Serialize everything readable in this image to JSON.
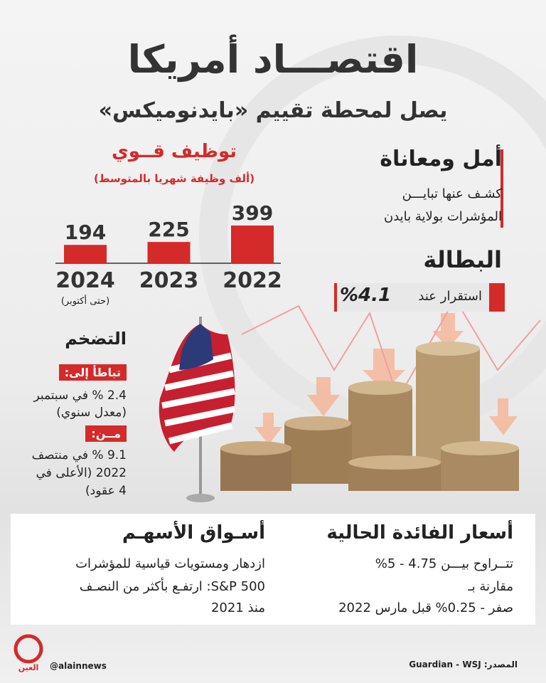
{
  "header": {
    "title": "اقتصـــاد أمريكا",
    "subtitle": "يصل لمحطة تقييم «بايدنوميكس»"
  },
  "chart_data": {
    "type": "bar",
    "title": "توظيف قــوي",
    "subtitle": "(ألف وظيفة شهريا بالمتوسط)",
    "categories": [
      "2022",
      "2023",
      "2024"
    ],
    "values": [
      399,
      225,
      194
    ],
    "color": "#d42a2a",
    "annotation": "(حتى أكتوبر)"
  },
  "hope": {
    "title": "أمل ومعاناة",
    "lines": [
      "كشـف عنها تبايـــن",
      "المؤشرات بولاية بايدن"
    ]
  },
  "unemployment": {
    "title": "البطالة",
    "label": "استقرار عند",
    "value": "%4.1"
  },
  "inflation": {
    "title": "التضخم",
    "slowed_label": "تباطأ إلى:",
    "slowed_lines": [
      "2.4 % في سبتمبر",
      "(معدل سنوي)"
    ],
    "from_label": "مــن:",
    "from_lines": [
      "9.1 % في منتصف",
      "2022 (الأعلى في",
      "4 عقود)"
    ]
  },
  "rates": {
    "title": "أسعار الفائدة الحالية",
    "lines": [
      "تتــراوح بيـــن 4.75 - 5%",
      "مقارنة بـ",
      "صفر - 0.25% قبل مارس 2022"
    ]
  },
  "stocks": {
    "title": "أسـواق الأسهـم",
    "lines": [
      "ازدهار ومستويات قياسية للمؤشرات",
      "S&P 500: ارتفـع بأكثر من النصـف",
      "منذ 2021"
    ]
  },
  "footer": {
    "logo": "العين",
    "handle": "@alainnews",
    "source": "المصدر: Guardian - WSJ"
  }
}
